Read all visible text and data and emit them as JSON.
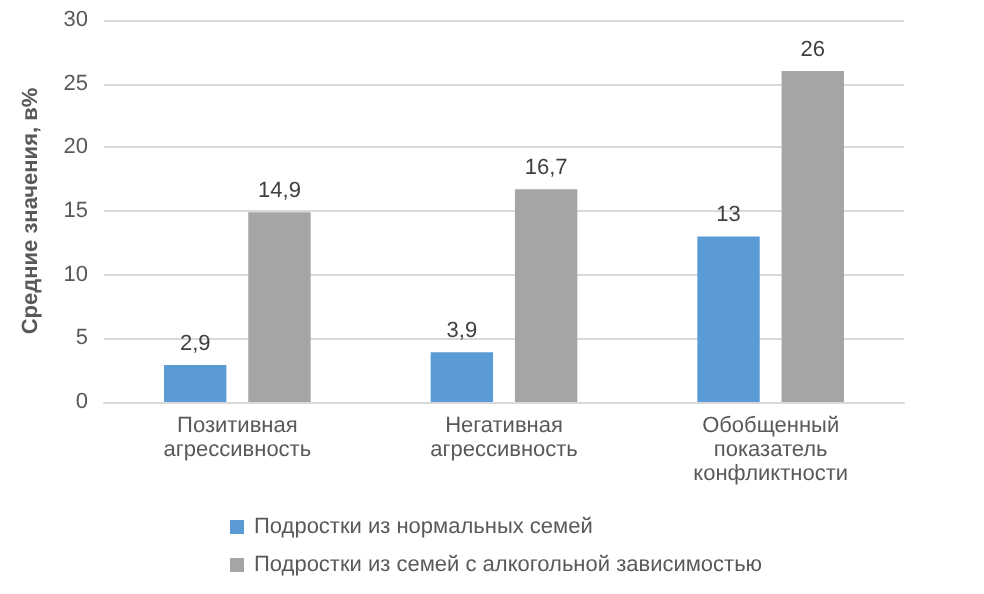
{
  "chart_data": {
    "type": "bar",
    "ylabel": "Средние значения, в%",
    "categories": [
      "Позитивная агрессивность",
      "Негативная агрессивность",
      "Обобщенный показатель конфликтности"
    ],
    "series": [
      {
        "name": "Подростки из нормальных семей",
        "color": "#5b9bd5",
        "values": [
          2.9,
          3.9,
          13
        ],
        "value_labels": [
          "2,9",
          "3,9",
          "13"
        ]
      },
      {
        "name": "Подростки из семей с алкогольной зависимостью",
        "color": "#a5a5a5",
        "values": [
          14.9,
          16.7,
          26
        ],
        "value_labels": [
          "14,9",
          "16,7",
          "26"
        ]
      }
    ],
    "ylim": [
      0,
      30
    ],
    "yticks": [
      0,
      5,
      10,
      15,
      20,
      25,
      30
    ],
    "grid": "y",
    "legend": "bottom"
  }
}
